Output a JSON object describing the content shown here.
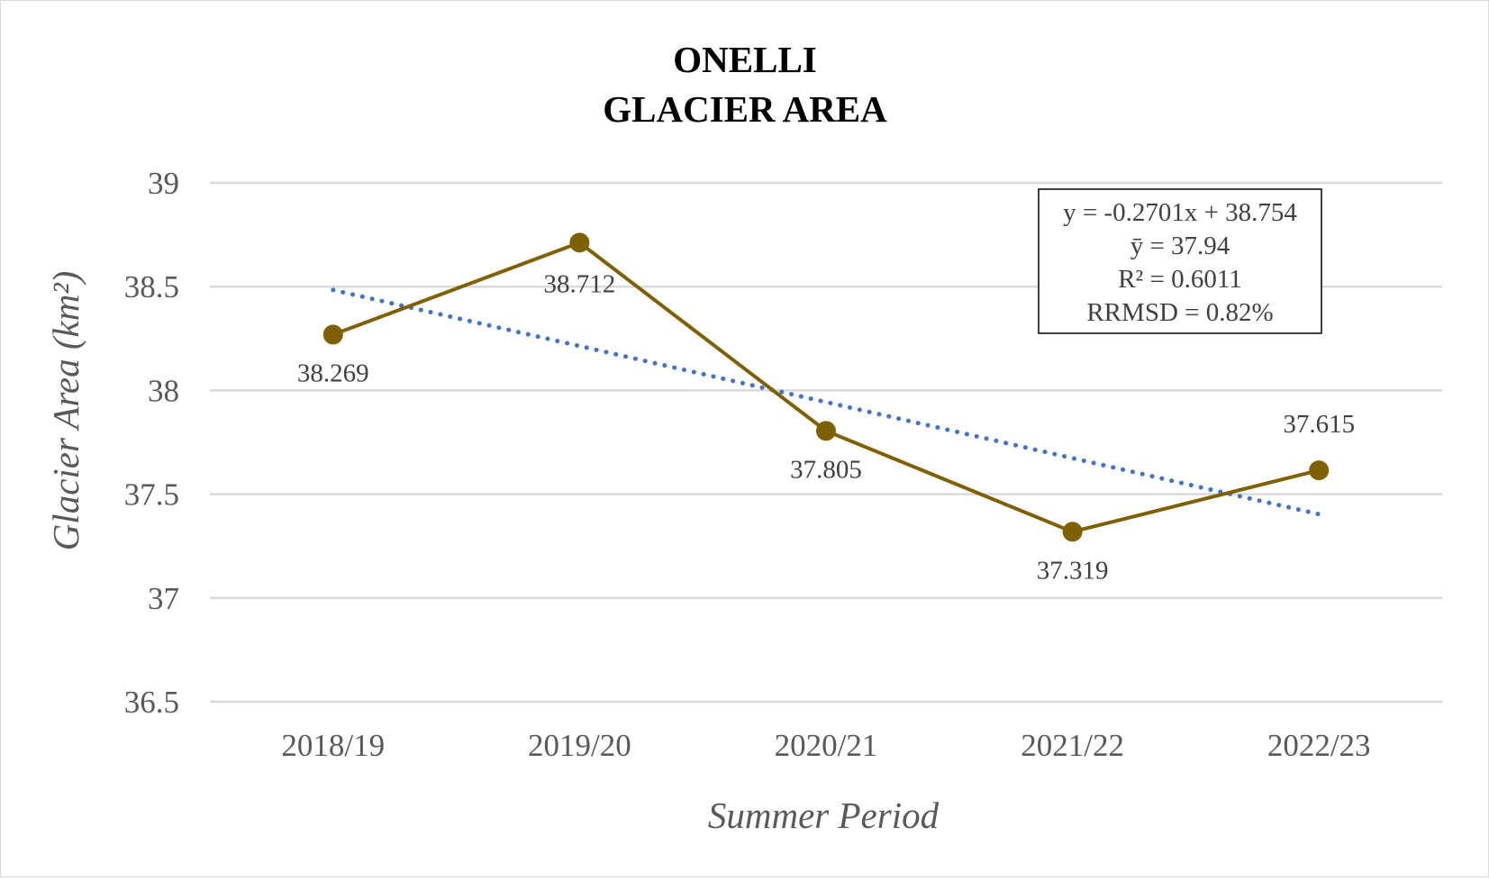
{
  "chart_data": {
    "type": "line",
    "title": [
      "ONELLI",
      "GLACIER AREA"
    ],
    "xlabel": "Summer Period",
    "ylabel": "Glacier Area (km²)",
    "categories": [
      "2018/19",
      "2019/20",
      "2020/21",
      "2021/22",
      "2022/23"
    ],
    "series": [
      {
        "values": [
          38.269,
          38.712,
          37.805,
          37.319,
          37.615
        ],
        "data_labels": [
          "38.269",
          "38.712",
          "37.805",
          "37.319",
          "37.615"
        ],
        "color": "#7f6000",
        "marker": "circle"
      }
    ],
    "trendline": {
      "type": "linear",
      "slope": -0.2701,
      "intercept": 38.754,
      "color": "#4472c4",
      "style": "dotted"
    },
    "ylim": [
      36.5,
      39
    ],
    "yticks": [
      "36.5",
      "37",
      "37.5",
      "38",
      "38.5",
      "39"
    ],
    "grid": true,
    "annotation": {
      "lines": [
        "y = -0.2701x + 38.754",
        "ȳ = 37.94",
        "R² = 0.6011",
        "RRMSD = 0.82%"
      ]
    }
  }
}
